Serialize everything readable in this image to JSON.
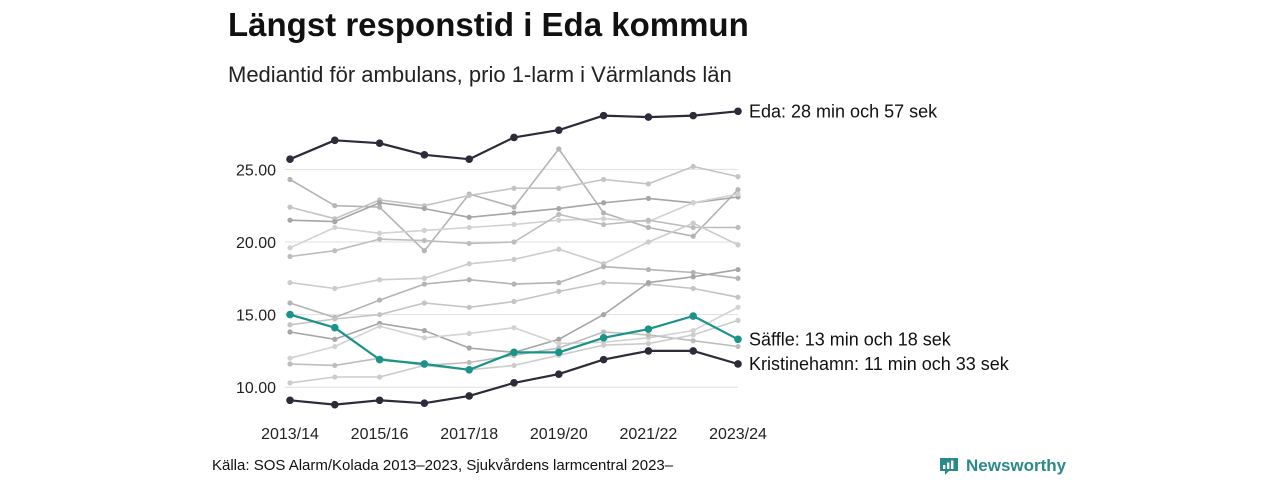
{
  "title": "Längst responstid i Eda kommun",
  "subtitle": "Mediantid för ambulans, prio 1-larm i Värmlands län",
  "source": "Källa: SOS Alarm/Kolada 2013–2023, Sjukvårdens larmcentral 2023–",
  "logo": {
    "text": "Newsworthy",
    "icon": "newsworthy-logo-icon",
    "color": "#2a8a8a"
  },
  "colors": {
    "highlight_dark": "#2b2b3a",
    "highlight_green": "#1a9488",
    "background_series": [
      "#b4b4b4",
      "#c4c4c4",
      "#a6a6a6",
      "#d2d2d2",
      "#bdbdbd",
      "#cccccc"
    ],
    "grid": "#e0e0e0"
  },
  "chart_data": {
    "type": "line",
    "x": [
      "2013/14",
      "2014/15",
      "2015/16",
      "2016/17",
      "2017/18",
      "2018/19",
      "2019/20",
      "2020/21",
      "2021/22",
      "2022/23",
      "2023/24"
    ],
    "x_tick_labels": [
      "2013/14",
      "2015/16",
      "2017/18",
      "2019/20",
      "2021/22",
      "2023/24"
    ],
    "y_ticks": [
      "10.00",
      "15.00",
      "20.00",
      "25.00"
    ],
    "ylim": [
      8.5,
      29.5
    ],
    "grid": true,
    "series": [
      {
        "label": "Eda: 28 min och 57 sek",
        "style": "dark",
        "values": [
          25.7,
          27.0,
          26.8,
          26.0,
          25.7,
          27.2,
          27.7,
          28.7,
          28.6,
          28.7,
          29.0
        ]
      },
      {
        "label": "Säffle: 13 min och 18 sek",
        "style": "green",
        "values": [
          15.0,
          14.1,
          11.9,
          11.6,
          11.2,
          12.4,
          12.4,
          13.4,
          14.0,
          14.9,
          13.3
        ]
      },
      {
        "label": "Kristinehamn: 11 min och 33 sek",
        "style": "dark",
        "values": [
          9.1,
          8.8,
          9.1,
          8.9,
          9.4,
          10.3,
          10.9,
          11.9,
          12.5,
          12.5,
          11.6
        ]
      },
      {
        "style": "grey",
        "values": [
          24.3,
          22.5,
          22.4,
          19.4,
          23.3,
          22.4,
          26.4,
          22.0,
          21.0,
          20.4,
          23.6
        ]
      },
      {
        "style": "grey",
        "values": [
          22.4,
          21.6,
          22.9,
          22.5,
          23.2,
          23.7,
          23.7,
          24.3,
          24.0,
          25.2,
          24.5
        ]
      },
      {
        "style": "grey",
        "values": [
          21.5,
          21.4,
          22.7,
          22.3,
          21.7,
          22.0,
          22.3,
          22.7,
          23.0,
          22.7,
          23.1
        ]
      },
      {
        "style": "grey",
        "values": [
          19.6,
          21.0,
          20.6,
          20.8,
          21.0,
          21.2,
          21.5,
          21.6,
          21.4,
          22.7,
          23.3
        ]
      },
      {
        "style": "grey",
        "values": [
          19.0,
          19.4,
          20.2,
          20.1,
          19.9,
          20.0,
          21.9,
          21.2,
          21.5,
          21.0,
          21.0
        ]
      },
      {
        "style": "grey",
        "values": [
          17.2,
          16.8,
          17.4,
          17.5,
          18.5,
          18.8,
          19.5,
          18.5,
          20.0,
          21.3,
          19.8
        ]
      },
      {
        "style": "grey",
        "values": [
          15.8,
          14.8,
          16.0,
          17.1,
          17.4,
          17.1,
          17.2,
          18.3,
          18.1,
          17.9,
          17.5
        ]
      },
      {
        "style": "grey",
        "values": [
          14.3,
          14.7,
          15.0,
          15.8,
          15.5,
          15.9,
          16.6,
          17.2,
          17.1,
          16.8,
          16.2
        ]
      },
      {
        "style": "grey",
        "values": [
          13.8,
          13.3,
          14.4,
          13.9,
          12.7,
          12.4,
          13.3,
          15.0,
          17.2,
          17.6,
          18.1
        ]
      },
      {
        "style": "grey",
        "values": [
          12.0,
          12.8,
          14.2,
          13.4,
          13.7,
          14.1,
          13.0,
          13.1,
          13.4,
          13.9,
          15.5
        ]
      },
      {
        "style": "grey",
        "values": [
          11.6,
          11.5,
          12.0,
          11.5,
          11.7,
          12.2,
          12.7,
          13.8,
          13.6,
          13.2,
          12.8
        ]
      },
      {
        "style": "grey",
        "values": [
          10.3,
          10.7,
          10.7,
          11.5,
          11.2,
          11.5,
          12.2,
          12.9,
          13.0,
          13.6,
          14.6
        ]
      }
    ]
  }
}
